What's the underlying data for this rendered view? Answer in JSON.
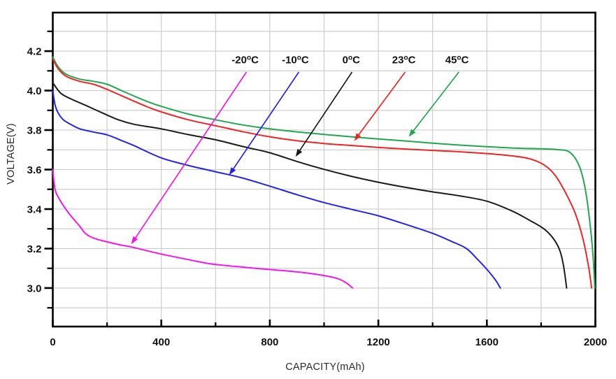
{
  "chart_data": {
    "type": "line",
    "title": "",
    "xlabel": "CAPACITY(mAh)",
    "ylabel": "VOLTAGE(V)",
    "xlim": [
      0,
      2000
    ],
    "ylim": [
      2.805,
      4.395
    ],
    "grid": {
      "on": true,
      "x_step": 200,
      "y_step": 0.1,
      "color": "#c9c9c9"
    },
    "frame_color": "#000000",
    "x_major_ticks": [
      0,
      400,
      800,
      1200,
      1600,
      2000
    ],
    "x_tick_labels": [
      "0",
      "400",
      "800",
      "1200",
      "1600",
      "2000"
    ],
    "x_minor_ticks": [
      200,
      600,
      1000,
      1400,
      1800
    ],
    "y_major_ticks": [
      3.0,
      3.2,
      3.4,
      3.6,
      3.8,
      4.0,
      4.2
    ],
    "y_tick_labels": [
      "3.0",
      "3.2",
      "3.4",
      "3.6",
      "3.8",
      "4.0",
      "4.2"
    ],
    "y_minor_ticks": [
      2.9,
      3.1,
      3.3,
      3.5,
      3.7,
      3.9,
      4.1,
      4.3
    ],
    "legend_position": "annotated-arrows",
    "series": [
      {
        "name": "45°C",
        "color": "#1fa84d",
        "points": [
          [
            0,
            4.17
          ],
          [
            20,
            4.12
          ],
          [
            50,
            4.082
          ],
          [
            100,
            4.058
          ],
          [
            150,
            4.047
          ],
          [
            200,
            4.032
          ],
          [
            250,
            4.002
          ],
          [
            300,
            3.972
          ],
          [
            350,
            3.944
          ],
          [
            400,
            3.92
          ],
          [
            500,
            3.881
          ],
          [
            600,
            3.852
          ],
          [
            700,
            3.826
          ],
          [
            800,
            3.806
          ],
          [
            900,
            3.791
          ],
          [
            1000,
            3.778
          ],
          [
            1100,
            3.766
          ],
          [
            1200,
            3.755
          ],
          [
            1300,
            3.745
          ],
          [
            1400,
            3.734
          ],
          [
            1500,
            3.724
          ],
          [
            1600,
            3.716
          ],
          [
            1700,
            3.709
          ],
          [
            1800,
            3.705
          ],
          [
            1860,
            3.701
          ],
          [
            1905,
            3.688
          ],
          [
            1940,
            3.62
          ],
          [
            1963,
            3.5
          ],
          [
            1980,
            3.33
          ],
          [
            1991,
            3.17
          ],
          [
            1998,
            3.0
          ]
        ]
      },
      {
        "name": "23°C",
        "color": "#ee2524",
        "points": [
          [
            0,
            4.16
          ],
          [
            20,
            4.11
          ],
          [
            50,
            4.072
          ],
          [
            100,
            4.047
          ],
          [
            150,
            4.032
          ],
          [
            200,
            4.006
          ],
          [
            250,
            3.976
          ],
          [
            300,
            3.946
          ],
          [
            350,
            3.917
          ],
          [
            400,
            3.892
          ],
          [
            500,
            3.852
          ],
          [
            600,
            3.822
          ],
          [
            700,
            3.792
          ],
          [
            800,
            3.766
          ],
          [
            900,
            3.746
          ],
          [
            1000,
            3.732
          ],
          [
            1100,
            3.722
          ],
          [
            1200,
            3.712
          ],
          [
            1300,
            3.704
          ],
          [
            1400,
            3.697
          ],
          [
            1500,
            3.69
          ],
          [
            1600,
            3.681
          ],
          [
            1700,
            3.668
          ],
          [
            1760,
            3.654
          ],
          [
            1815,
            3.62
          ],
          [
            1855,
            3.565
          ],
          [
            1895,
            3.47
          ],
          [
            1928,
            3.37
          ],
          [
            1956,
            3.24
          ],
          [
            1976,
            3.1
          ],
          [
            1986,
            3.0
          ]
        ]
      },
      {
        "name": "0°C",
        "color": "#1a1a1a",
        "points": [
          [
            0,
            4.04
          ],
          [
            30,
            3.986
          ],
          [
            70,
            3.956
          ],
          [
            120,
            3.926
          ],
          [
            160,
            3.901
          ],
          [
            240,
            3.853
          ],
          [
            300,
            3.829
          ],
          [
            400,
            3.806
          ],
          [
            500,
            3.777
          ],
          [
            600,
            3.751
          ],
          [
            700,
            3.717
          ],
          [
            800,
            3.685
          ],
          [
            900,
            3.641
          ],
          [
            1000,
            3.601
          ],
          [
            1100,
            3.566
          ],
          [
            1200,
            3.536
          ],
          [
            1300,
            3.51
          ],
          [
            1400,
            3.487
          ],
          [
            1500,
            3.467
          ],
          [
            1600,
            3.44
          ],
          [
            1690,
            3.392
          ],
          [
            1750,
            3.349
          ],
          [
            1810,
            3.3
          ],
          [
            1845,
            3.251
          ],
          [
            1869,
            3.19
          ],
          [
            1883,
            3.11
          ],
          [
            1894,
            3.0
          ]
        ]
      },
      {
        "name": "-10°C",
        "color": "#2424e8",
        "points": [
          [
            0,
            4.0
          ],
          [
            8,
            3.93
          ],
          [
            20,
            3.886
          ],
          [
            40,
            3.851
          ],
          [
            70,
            3.826
          ],
          [
            100,
            3.806
          ],
          [
            150,
            3.79
          ],
          [
            200,
            3.776
          ],
          [
            250,
            3.749
          ],
          [
            300,
            3.721
          ],
          [
            400,
            3.659
          ],
          [
            500,
            3.621
          ],
          [
            600,
            3.589
          ],
          [
            700,
            3.557
          ],
          [
            800,
            3.516
          ],
          [
            900,
            3.473
          ],
          [
            1000,
            3.433
          ],
          [
            1100,
            3.399
          ],
          [
            1200,
            3.366
          ],
          [
            1300,
            3.323
          ],
          [
            1400,
            3.277
          ],
          [
            1470,
            3.236
          ],
          [
            1525,
            3.2
          ],
          [
            1568,
            3.142
          ],
          [
            1603,
            3.09
          ],
          [
            1632,
            3.04
          ],
          [
            1650,
            3.0
          ]
        ]
      },
      {
        "name": "-20°C",
        "color": "#f414ec",
        "points": [
          [
            0,
            3.6
          ],
          [
            8,
            3.502
          ],
          [
            20,
            3.461
          ],
          [
            35,
            3.426
          ],
          [
            55,
            3.386
          ],
          [
            75,
            3.352
          ],
          [
            100,
            3.312
          ],
          [
            120,
            3.277
          ],
          [
            150,
            3.253
          ],
          [
            200,
            3.234
          ],
          [
            250,
            3.218
          ],
          [
            290,
            3.208
          ],
          [
            350,
            3.188
          ],
          [
            410,
            3.169
          ],
          [
            500,
            3.144
          ],
          [
            580,
            3.123
          ],
          [
            700,
            3.106
          ],
          [
            790,
            3.095
          ],
          [
            900,
            3.082
          ],
          [
            1000,
            3.063
          ],
          [
            1050,
            3.048
          ],
          [
            1082,
            3.026
          ],
          [
            1105,
            3.0
          ]
        ]
      }
    ],
    "annotations": [
      {
        "label": "-20",
        "sup": "o",
        "unit": "C",
        "color": "#f414ec",
        "label_at": [
          709,
          4.157
        ],
        "arrow_from": [
          714,
          4.094
        ],
        "arrow_to": [
          289,
          3.222
        ]
      },
      {
        "label": "-10",
        "sup": "o",
        "unit": "C",
        "color": "#2424e8",
        "label_at": [
          894,
          4.157
        ],
        "arrow_from": [
          907,
          4.094
        ],
        "arrow_to": [
          650,
          3.572
        ]
      },
      {
        "label": "0",
        "sup": "o",
        "unit": "C",
        "color": "#1a1a1a",
        "label_at": [
          1100,
          4.157
        ],
        "arrow_from": [
          1103,
          4.094
        ],
        "arrow_to": [
          895,
          3.665
        ]
      },
      {
        "label": "23",
        "sup": "o",
        "unit": "C",
        "color": "#ee2524",
        "label_at": [
          1294,
          4.157
        ],
        "arrow_from": [
          1299,
          4.094
        ],
        "arrow_to": [
          1111,
          3.745
        ]
      },
      {
        "label": "45",
        "sup": "o",
        "unit": "C",
        "color": "#1fa84d",
        "label_at": [
          1490,
          4.157
        ],
        "arrow_from": [
          1497,
          4.094
        ],
        "arrow_to": [
          1312,
          3.766
        ]
      }
    ],
    "text_color": "#111111",
    "axis_title_color": "#2b2b2b"
  }
}
